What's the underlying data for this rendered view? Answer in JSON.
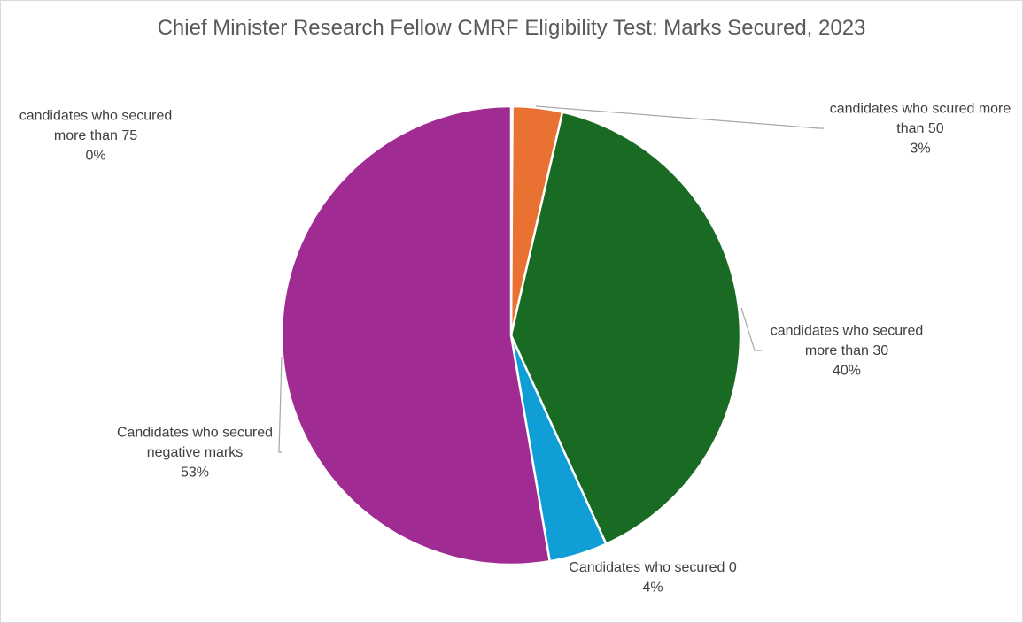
{
  "chart_data": {
    "type": "pie",
    "title": "Chief Minister Research Fellow CMRF Eligibility Test: Marks Secured, 2023",
    "start_angle_deg": 0,
    "slices": [
      {
        "label_lines": [
          "candidates who secured",
          "more than 75"
        ],
        "pct_label": "0%",
        "value": 0.1,
        "color": "#4472c4"
      },
      {
        "label_lines": [
          "candidates who scured more",
          "than 50"
        ],
        "pct_label": "3%",
        "value": 3.5,
        "color": "#e97132"
      },
      {
        "label_lines": [
          "candidates who secured",
          "more than 30"
        ],
        "pct_label": "40%",
        "value": 39.6,
        "color": "#196b24"
      },
      {
        "label_lines": [
          "Candidates who secured 0"
        ],
        "pct_label": "4%",
        "value": 4.1,
        "color": "#0f9ed5"
      },
      {
        "label_lines": [
          "Candidates who secured",
          "negative marks"
        ],
        "pct_label": "53%",
        "value": 52.7,
        "color": "#a02b93"
      }
    ],
    "data_labels": "outside, category name and percentage",
    "legend": "none"
  }
}
